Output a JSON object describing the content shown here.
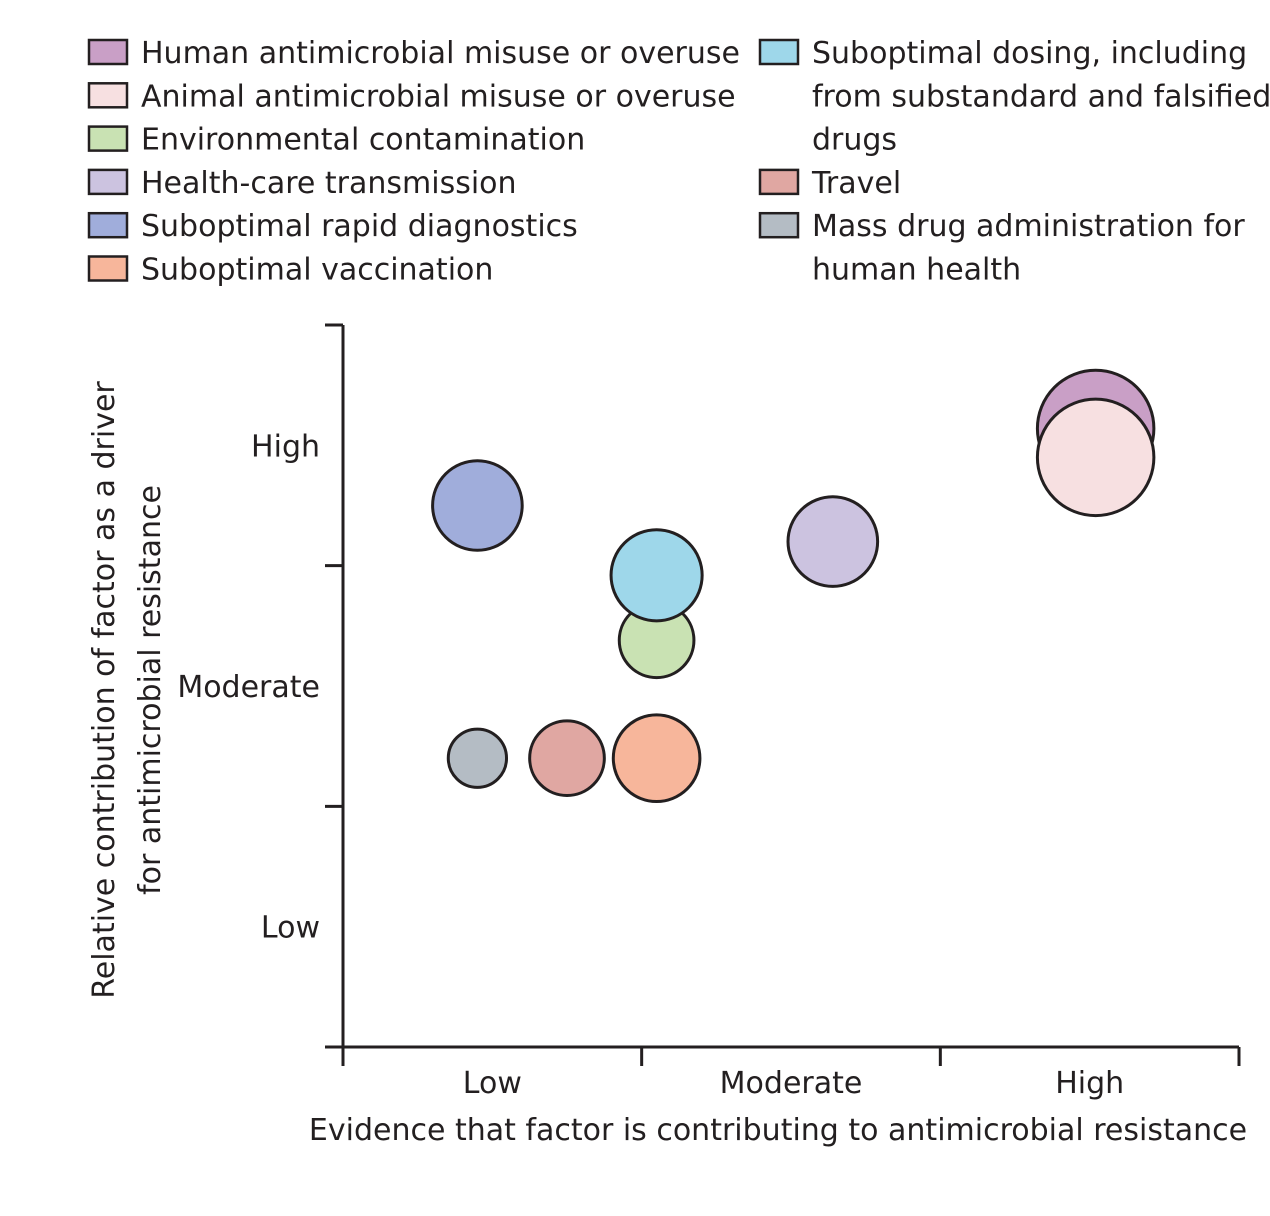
{
  "chart_data": {
    "type": "scatter",
    "subtype": "bubble",
    "title": "",
    "xlabel": "Evidence that factor is contributing to antimicrobial resistance",
    "ylabel_lines": [
      "Relative contribution of factor as a driver",
      "for antimicrobial resistance"
    ],
    "x_tick_labels": [
      "Low",
      "Moderate",
      "High"
    ],
    "y_tick_labels": [
      "Low",
      "Moderate",
      "High"
    ],
    "xlim": [
      0,
      3
    ],
    "ylim": [
      0,
      3
    ],
    "grid": false,
    "legend_position": "top",
    "series": [
      {
        "name": "Human antimicrobial misuse or overuse",
        "x": 2.52,
        "y": 2.57,
        "size": 0.78,
        "color": "#c99fc6"
      },
      {
        "name": "Animal antimicrobial misuse or overuse",
        "x": 2.52,
        "y": 2.45,
        "size": 0.78,
        "color": "#f7e0e1"
      },
      {
        "name": "Environmental contamination",
        "x": 1.05,
        "y": 1.69,
        "size": 0.5,
        "color": "#c9e2b3"
      },
      {
        "name": "Health-care transmission",
        "x": 1.64,
        "y": 2.1,
        "size": 0.6,
        "color": "#ccc3e0"
      },
      {
        "name": "Suboptimal rapid diagnostics",
        "x": 0.45,
        "y": 2.25,
        "size": 0.6,
        "color": "#a0addb"
      },
      {
        "name": "Suboptimal vaccination",
        "x": 1.05,
        "y": 1.2,
        "size": 0.58,
        "color": "#f7b69b"
      },
      {
        "name": "Suboptimal dosing, including from substandard and falsified drugs",
        "x": 1.05,
        "y": 1.96,
        "size": 0.61,
        "color": "#9ed7ea"
      },
      {
        "name": "Travel",
        "x": 0.75,
        "y": 1.2,
        "size": 0.5,
        "color": "#e0a7a2"
      },
      {
        "name": "Mass drug administration for human health",
        "x": 0.45,
        "y": 1.2,
        "size": 0.39,
        "color": "#b4bcc4"
      }
    ]
  },
  "legend": {
    "items": [
      {
        "lines": [
          "Human antimicrobial misuse or overuse"
        ],
        "color": "#c99fc6"
      },
      {
        "lines": [
          "Animal antimicrobial misuse or overuse"
        ],
        "color": "#f7e0e1"
      },
      {
        "lines": [
          "Environmental contamination"
        ],
        "color": "#c9e2b3"
      },
      {
        "lines": [
          "Health-care transmission"
        ],
        "color": "#ccc3e0"
      },
      {
        "lines": [
          "Suboptimal rapid diagnostics"
        ],
        "color": "#a0addb"
      },
      {
        "lines": [
          "Suboptimal vaccination"
        ],
        "color": "#f7b69b"
      },
      {
        "lines": [
          "Suboptimal dosing, including",
          "from substandard and falsified",
          "drugs"
        ],
        "color": "#9ed7ea"
      },
      {
        "lines": [
          "Travel"
        ],
        "color": "#e0a7a2"
      },
      {
        "lines": [
          "Mass drug administration for",
          "human health"
        ],
        "color": "#b4bcc4"
      }
    ]
  },
  "draw_order": [
    5,
    7,
    8,
    2,
    6,
    4,
    3,
    0,
    1
  ]
}
